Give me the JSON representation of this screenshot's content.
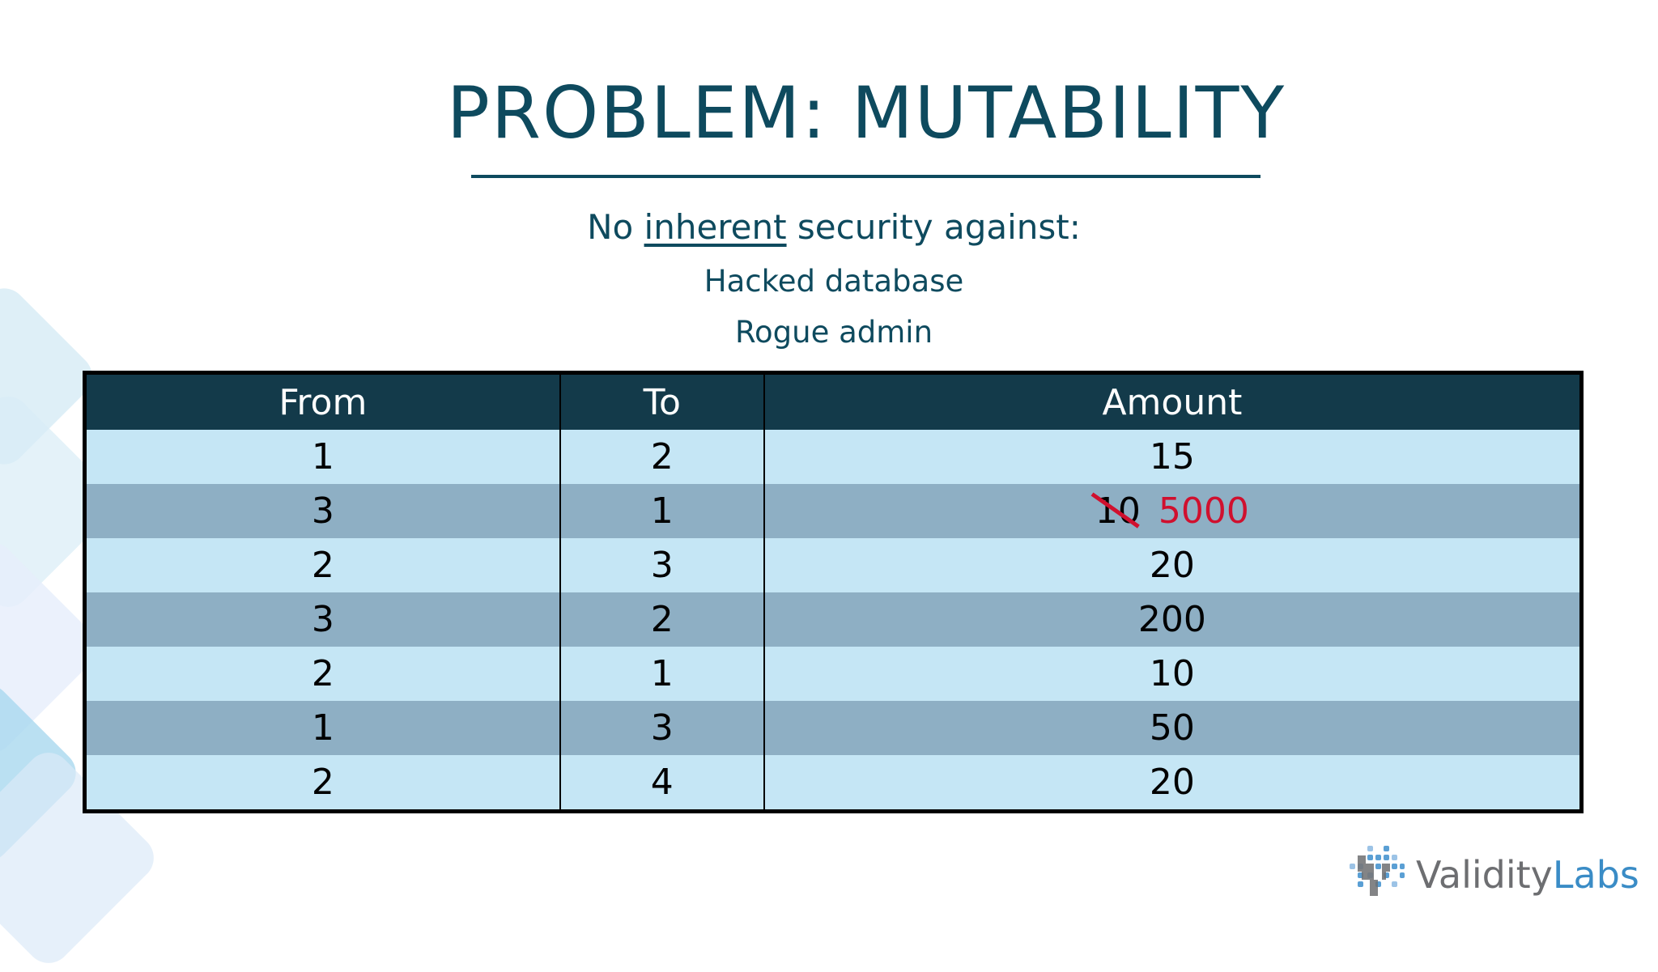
{
  "slide": {
    "title": "PROBLEM: MUTABILITY",
    "subtitle_prefix": "No ",
    "subtitle_emph": "inherent",
    "subtitle_suffix": " security against:",
    "lines": [
      "Hacked database",
      "Rogue admin"
    ]
  },
  "table": {
    "headers": [
      "From",
      "To",
      "Amount"
    ],
    "rows": [
      {
        "from": "1",
        "to": "2",
        "amount": "15"
      },
      {
        "from": "3",
        "to": "1",
        "amount": "10",
        "amount_new": "5000"
      },
      {
        "from": "2",
        "to": "3",
        "amount": "20"
      },
      {
        "from": "3",
        "to": "2",
        "amount": "200"
      },
      {
        "from": "2",
        "to": "1",
        "amount": "10"
      },
      {
        "from": "1",
        "to": "3",
        "amount": "50"
      },
      {
        "from": "2",
        "to": "4",
        "amount": "20"
      }
    ]
  },
  "logo": {
    "part1": "Validity",
    "part2": "Labs"
  },
  "colors": {
    "title": "#0e4a5e",
    "header": "#133a4a",
    "row_light": "#c5e6f5",
    "row_dark": "#8eafc4",
    "edit": "#d0102e"
  }
}
